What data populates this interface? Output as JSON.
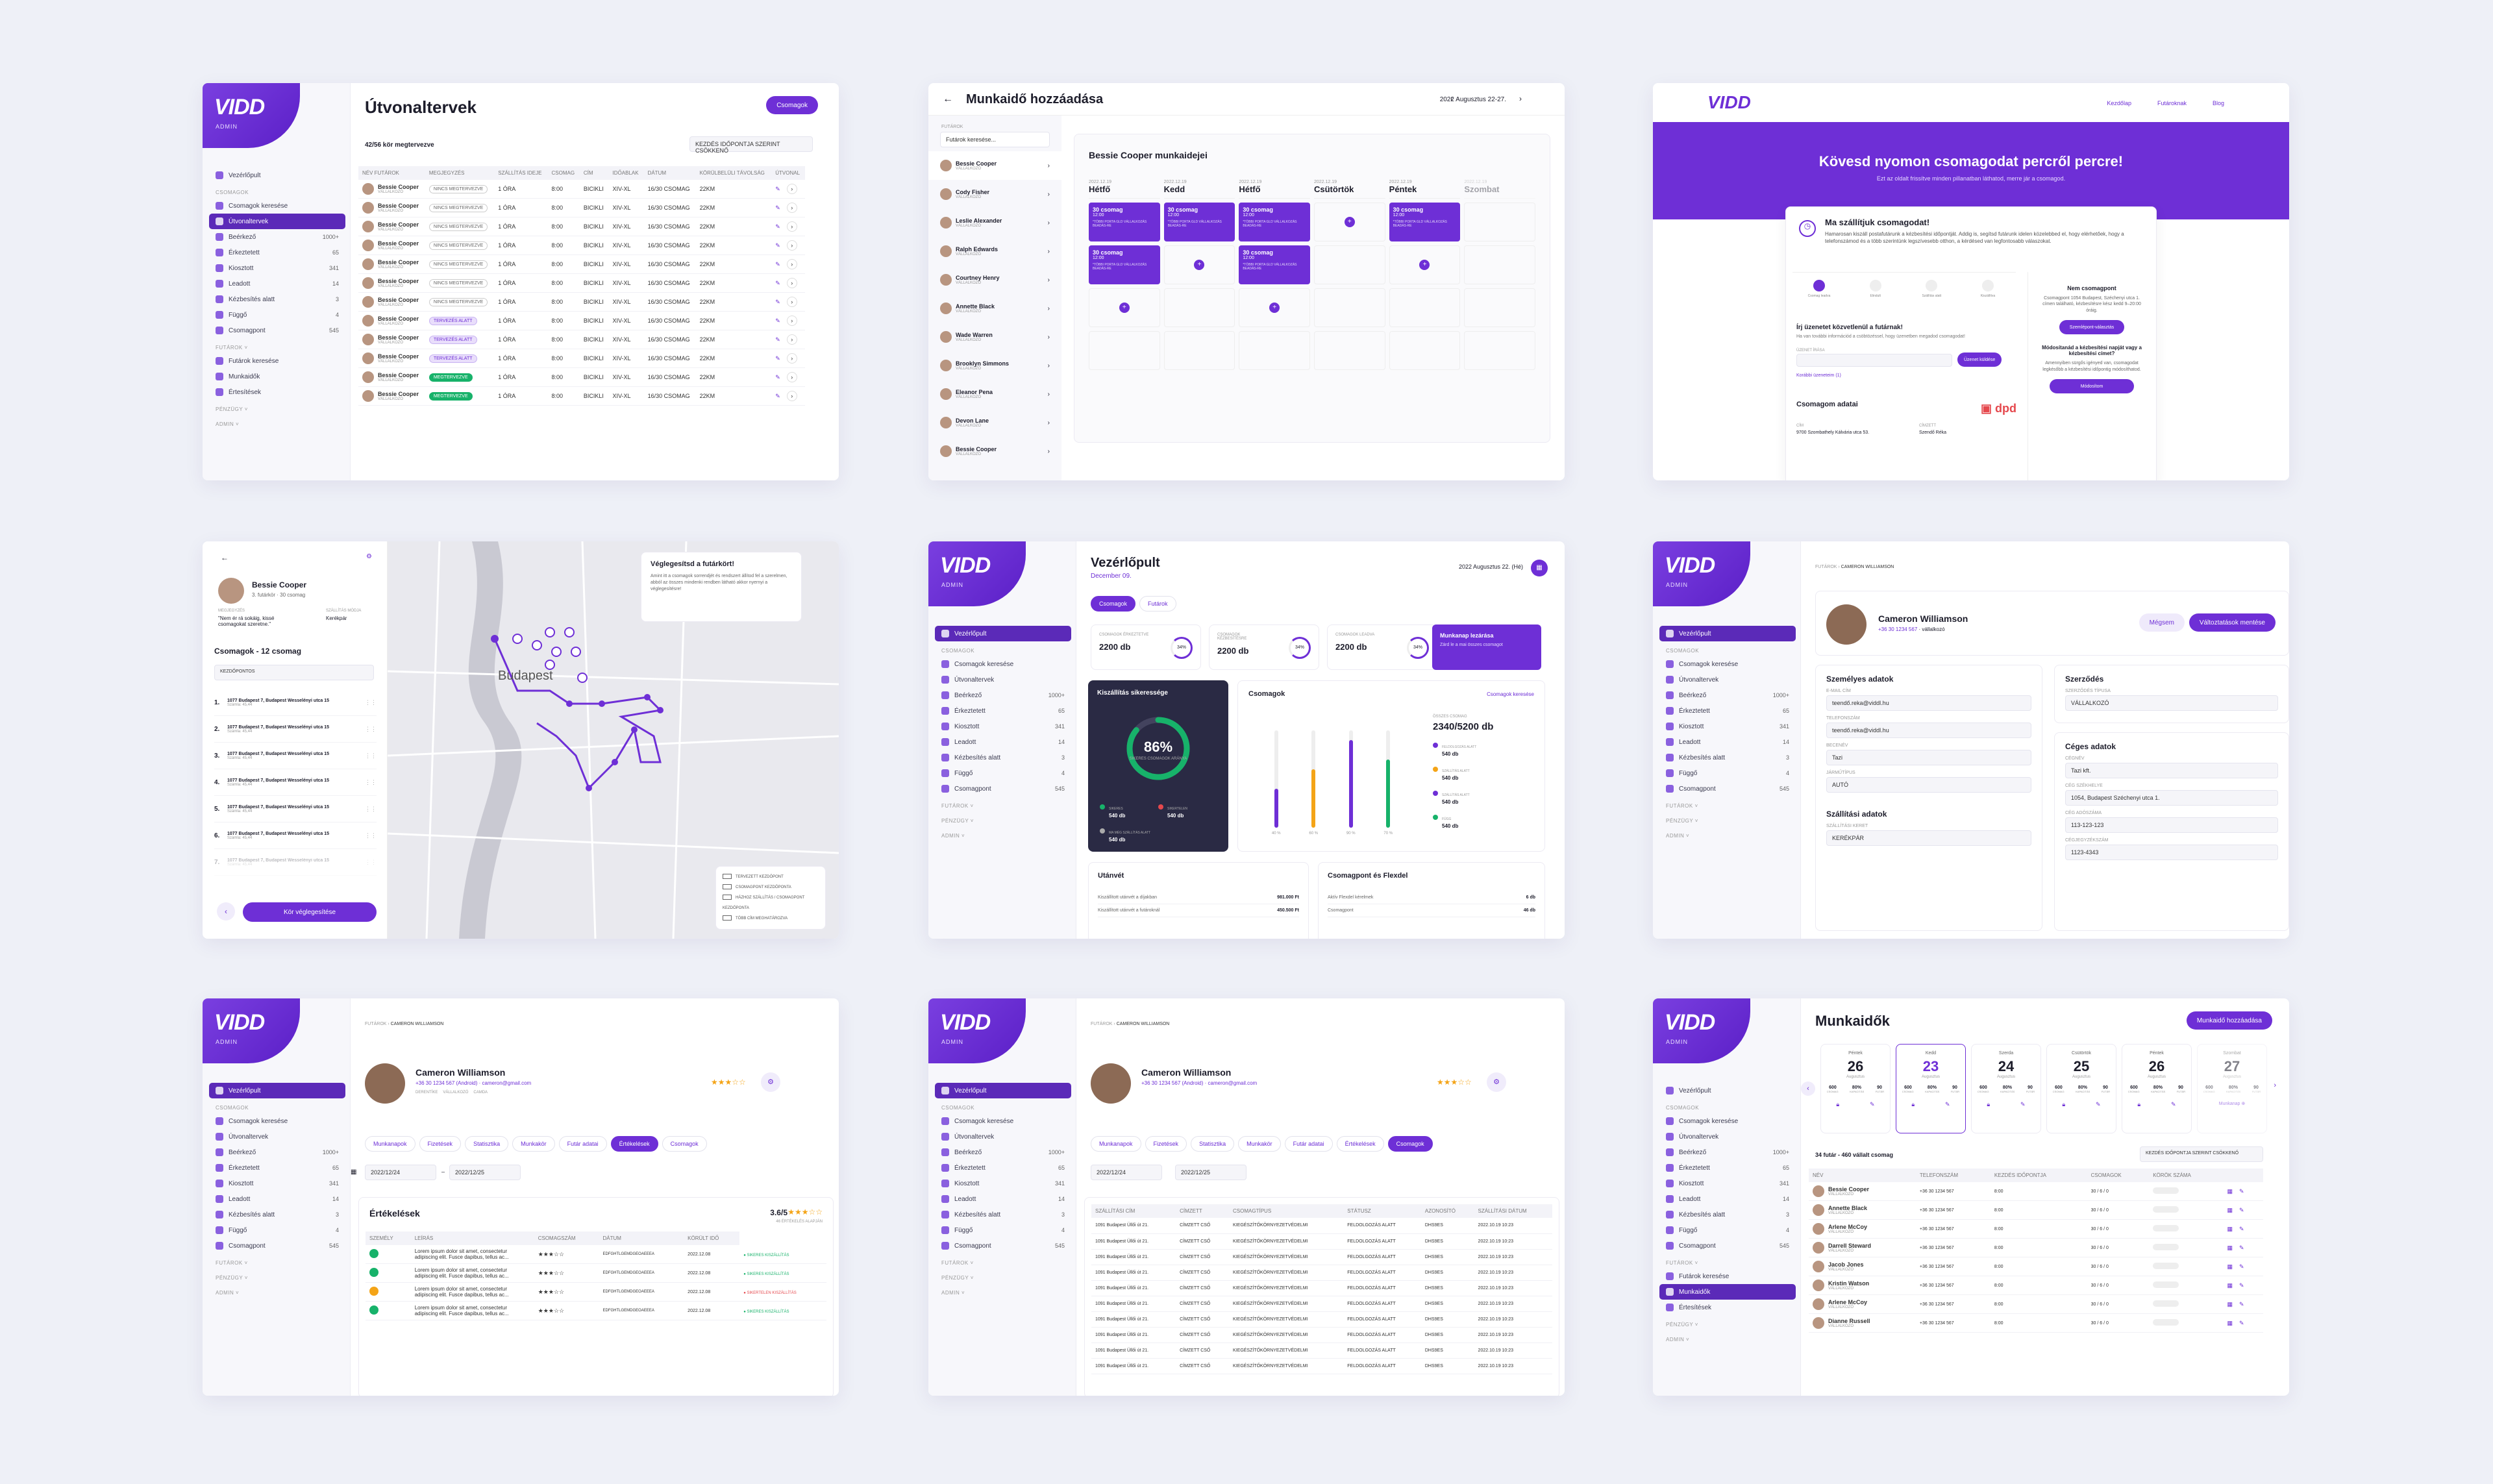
{
  "brand": {
    "logo": "VIDD",
    "sub": "ADMIN"
  },
  "nav": {
    "dashboard": "Vezérlőpult",
    "packages_group": "CSOMAGOK",
    "items": [
      {
        "label": "Csomagok keresése",
        "count": ""
      },
      {
        "label": "Útvonaltervek",
        "count": ""
      },
      {
        "label": "Beérkező",
        "count": "1000+"
      },
      {
        "label": "Érkeztetett",
        "count": "65"
      },
      {
        "label": "Kiosztott",
        "count": "341"
      },
      {
        "label": "Leadott",
        "count": "14"
      },
      {
        "label": "Kézbesítés alatt",
        "count": "3"
      },
      {
        "label": "Függő",
        "count": "4"
      },
      {
        "label": "Csomagpont",
        "count": "545"
      }
    ],
    "g2": "FUTÁROK",
    "g2items": [
      "Futárok keresése",
      "Munkaidők",
      "Értesítések"
    ],
    "g3": "PÉNZÜGY",
    "g4": "ADMIN"
  },
  "s1": {
    "title": "Útvonaltervek",
    "btn": "Csomagok",
    "count": "42/56 kör megtervezve",
    "filter": "KEZDÉS IDŐPONTJA SZERINT CSÖKKENŐ",
    "cols": [
      "NÉV FUTÁROK",
      "MEGJEGYZÉS",
      "SZÁLLÍTÁS IDEJE",
      "CSOMAG",
      "CÍM",
      "IDŐABLAK",
      "DÁTUM",
      "KÖRÜLBELÜLI TÁVOLSÁG",
      "ÚTVONAL"
    ],
    "rows": [
      {
        "name": "Bessie Cooper",
        "role": "VÁLLALKOZÓ",
        "status": "NINCS MEGTERVEZVE",
        "st": "n",
        "a": "1 ÓRA",
        "b": "8:00",
        "c": "BICIKLI",
        "d": "XIV-XL",
        "e": "16/30 CSOMAG",
        "f": "22KM"
      },
      {
        "name": "Bessie Cooper",
        "role": "VÁLLALKOZÓ",
        "status": "NINCS MEGTERVEZVE",
        "st": "n",
        "a": "1 ÓRA",
        "b": "8:00",
        "c": "BICIKLI",
        "d": "XIV-XL",
        "e": "16/30 CSOMAG",
        "f": "22KM"
      },
      {
        "name": "Bessie Cooper",
        "role": "VÁLLALKOZÓ",
        "status": "NINCS MEGTERVEZVE",
        "st": "n",
        "a": "1 ÓRA",
        "b": "8:00",
        "c": "BICIKLI",
        "d": "XIV-XL",
        "e": "16/30 CSOMAG",
        "f": "22KM"
      },
      {
        "name": "Bessie Cooper",
        "role": "VÁLLALKOZÓ",
        "status": "NINCS MEGTERVEZVE",
        "st": "n",
        "a": "1 ÓRA",
        "b": "8:00",
        "c": "BICIKLI",
        "d": "XIV-XL",
        "e": "16/30 CSOMAG",
        "f": "22KM"
      },
      {
        "name": "Bessie Cooper",
        "role": "VÁLLALKOZÓ",
        "status": "NINCS MEGTERVEZVE",
        "st": "n",
        "a": "1 ÓRA",
        "b": "8:00",
        "c": "BICIKLI",
        "d": "XIV-XL",
        "e": "16/30 CSOMAG",
        "f": "22KM"
      },
      {
        "name": "Bessie Cooper",
        "role": "VÁLLALKOZÓ",
        "status": "NINCS MEGTERVEZVE",
        "st": "n",
        "a": "1 ÓRA",
        "b": "8:00",
        "c": "BICIKLI",
        "d": "XIV-XL",
        "e": "16/30 CSOMAG",
        "f": "22KM"
      },
      {
        "name": "Bessie Cooper",
        "role": "VÁLLALKOZÓ",
        "status": "NINCS MEGTERVEZVE",
        "st": "n",
        "a": "1 ÓRA",
        "b": "8:00",
        "c": "BICIKLI",
        "d": "XIV-XL",
        "e": "16/30 CSOMAG",
        "f": "22KM"
      },
      {
        "name": "Bessie Cooper",
        "role": "VÁLLALKOZÓ",
        "status": "TERVEZÉS ALATT",
        "st": "p",
        "a": "1 ÓRA",
        "b": "8:00",
        "c": "BICIKLI",
        "d": "XIV-XL",
        "e": "16/30 CSOMAG",
        "f": "22KM"
      },
      {
        "name": "Bessie Cooper",
        "role": "VÁLLALKOZÓ",
        "status": "TERVEZÉS ALATT",
        "st": "p",
        "a": "1 ÓRA",
        "b": "8:00",
        "c": "BICIKLI",
        "d": "XIV-XL",
        "e": "16/30 CSOMAG",
        "f": "22KM"
      },
      {
        "name": "Bessie Cooper",
        "role": "VÁLLALKOZÓ",
        "status": "TERVEZÉS ALATT",
        "st": "p",
        "a": "1 ÓRA",
        "b": "8:00",
        "c": "BICIKLI",
        "d": "XIV-XL",
        "e": "16/30 CSOMAG",
        "f": "22KM"
      },
      {
        "name": "Bessie Cooper",
        "role": "VÁLLALKOZÓ",
        "status": "MEGTERVEZVE",
        "st": "g",
        "a": "1 ÓRA",
        "b": "8:00",
        "c": "BICIKLI",
        "d": "XIV-XL",
        "e": "16/30 CSOMAG",
        "f": "22KM"
      },
      {
        "name": "Bessie Cooper",
        "role": "VÁLLALKOZÓ",
        "status": "MEGTERVEZVE",
        "st": "g",
        "a": "1 ÓRA",
        "b": "8:00",
        "c": "BICIKLI",
        "d": "XIV-XL",
        "e": "16/30 CSOMAG",
        "f": "22KM"
      }
    ]
  },
  "s2": {
    "title": "Munkaidő hozzáadása",
    "date": "2022 Augusztus 22-27.",
    "side_label": "FUTÁROK",
    "search": "Futárok keresése...",
    "heading": "Bessie Cooper munkaidejei",
    "couriers": [
      {
        "n": "Bessie Cooper",
        "r": "VÁLLALKOZÓ"
      },
      {
        "n": "Cody Fisher",
        "r": "VÁLLALKOZÓ"
      },
      {
        "n": "Leslie Alexander",
        "r": "VÁLLALKOZÓ"
      },
      {
        "n": "Ralph Edwards",
        "r": "VÁLLALKOZÓ"
      },
      {
        "n": "Courtney Henry",
        "r": "VÁLLALKOZÓ"
      },
      {
        "n": "Annette Black",
        "r": "VÁLLALKOZÓ"
      },
      {
        "n": "Wade Warren",
        "r": "VÁLLALKOZÓ"
      },
      {
        "n": "Brooklyn Simmons",
        "r": "VÁLLALKOZÓ"
      },
      {
        "n": "Eleanor Pena",
        "r": "VÁLLALKOZÓ"
      },
      {
        "n": "Devon Lane",
        "r": "VÁLLALKOZÓ"
      },
      {
        "n": "Bessie Cooper",
        "r": "VÁLLALKOZÓ"
      }
    ],
    "days": [
      {
        "d": "2022.12.19",
        "n": "Hétfő"
      },
      {
        "d": "2022.12.19",
        "n": "Kedd"
      },
      {
        "d": "2022.12.19",
        "n": "Hétfő"
      },
      {
        "d": "2022.12.19",
        "n": "Csütörtök"
      },
      {
        "d": "2022.12.19",
        "n": "Péntek"
      },
      {
        "d": "2022.12.19",
        "n": "Szombat"
      }
    ],
    "slot": "30 csomag",
    "slot_t": "12:00",
    "slot_note": "*TÖBBI PORTA GLD VÁLLALKOZÁS BEADÁS-RE"
  },
  "s3": {
    "nav": [
      "Kezdőlap",
      "Futároknak",
      "Blog"
    ],
    "hero": "Kövesd nyomon csomagodat percről percre!",
    "hero_sub": "Ezt az oldalt frissítve minden pillanatban láthatod, merre jár a csomagod.",
    "card_title": "Ma szállítjuk csomagodat!",
    "card_text": "Hamarosan kiszáll postafutárunk a kézbesítési időpontját. Addig is, segítsd futárunk idelen közelebbed el, hogy elérhetőek, hogy a telefonszámod és a több szerintünk legszívesebb otthon, a kérdésed van legfontosabb válaszokat.",
    "steps": [
      "Csomag leadva",
      "Elindult",
      "Szállítás alatt",
      "Kiszállítva"
    ],
    "msg_title": "Írj üzenetet közvetlenül a futárnak!",
    "msg_text": "Ha van további információd a csöbtözéssel, hogy üzenetben megadod csomagodat!",
    "msg_label": "ÜZENET ÍRÁSA",
    "msg_btn": "Üzenet küldése",
    "msg_link": "Korábbi üzeneteim (1)",
    "data_title": "Csomagom adatai",
    "addr_l": "CÍM",
    "addr": "9700 Szombathely Kálvária utca 53.",
    "rec_l": "CÍMZETT",
    "rec": "Szendő Réka",
    "side1": "Nem csomagpont",
    "side1_t": "Csomagpont 1054 Budapest, Széchenyi utca 1. címen található, kézbesítésre kész kedd 9–20:00 óráig.",
    "side1_btn": "Szemlépont-választás",
    "side2": "Módosítanád a kézbesítési napját vagy a kézbesítési címet?",
    "side2_t": "Amennyiben sürgős igényed van, csomagodat legkésőbb a kézbesítési időpontig módosíthatod.",
    "side2_btn": "Módosítom"
  },
  "s4": {
    "name": "Bessie Cooper",
    "meta": "3. futárkör · 30 csomag",
    "note_l": "MEGJEGYZÉS",
    "note": "\"Nem ér rá sokáig, kissé csomagokat szeretne.\"",
    "veh_l": "SZÁLLÍTÁS MÓDJA",
    "veh": "Kerékpár",
    "list_title": "Csomagok - 12 csomag",
    "sort": "KEZDŐPONTOS",
    "items": [
      "1077 Budapest 7, Budapest Wesselényi utca 15",
      "1077 Budapest 7, Budapest Wesselényi utca 15",
      "1077 Budapest 7, Budapest Wesselényi utca 15",
      "1077 Budapest 7, Budapest Wesselényi utca 15",
      "1077 Budapest 7, Budapest Wesselényi utca 15",
      "1077 Budapest 7, Budapest Wesselényi utca 15",
      "1077 Budapest 7, Budapest Wesselényi utca 15"
    ],
    "item_sub": "Számla: 45,44",
    "finish": "Kör véglegesítése",
    "popup_t": "Véglegesítsd a futárkört!",
    "popup": "Amint itt a csomagok sorrendjét és rendszert állítod fel a szerelmen, abból az összes mindenki rendben látható akkor nyernyi a véglegesítésre!",
    "city": "Budapest",
    "legend": [
      "TERVEZETT KEZDŐPONT",
      "CSOMAGPONT KEZDŐPONTA",
      "HÁZHOZ SZÁLLÍTÁS / CSOMAGPONT KEZDŐPONTA",
      "TÖBB CÍM MEGHATÁROZVA"
    ]
  },
  "s5": {
    "title": "Vezérlőpult",
    "sub": "December 09.",
    "tabs": [
      "Csomagok",
      "Futárok"
    ],
    "date": "2022 Augusztus 22. (Hé)",
    "stats": [
      {
        "l": "CSOMAGOK ÉRKEZTETVE",
        "v": "2200 db",
        "p": "34%"
      },
      {
        "l": "CSOMAGOK KÉZBESÍTÉSRE",
        "v": "2200 db",
        "p": "34%"
      },
      {
        "l": "CSOMAGOK LEADVA",
        "v": "2200 db",
        "p": "34%"
      }
    ],
    "cta": "Munkanap lezárása",
    "cta_t": "Zárd le a mai összes csomagot",
    "success_t": "Kiszállítás sikeressége",
    "success_p": "86%",
    "success_s": "SIKERES CSOMAGOK ARÁNYA",
    "legend": [
      {
        "l": "SIKERES",
        "v": "540 db"
      },
      {
        "l": "SIKERTELEN",
        "v": "540 db"
      },
      {
        "l": "MA MÉG SZÁLLÍTÁS ALATT",
        "v": "540 db"
      }
    ],
    "pk_title": "Csomagok",
    "pk_link": "Csomagok keresése",
    "total_l": "ÖSSZES CSOMAG",
    "total": "2340/5200 db",
    "pk": [
      {
        "l": "FELDOLGOZÁS ALATT",
        "v": "540 db"
      },
      {
        "l": "SZÁLLÍTÁS ALATT",
        "v": "540 db"
      },
      {
        "l": "SZÁLLÍTÁS ALATT",
        "v": "540 db"
      },
      {
        "l": "FÜGG",
        "v": "540 db"
      }
    ],
    "bars": [
      "40 %",
      "60 %",
      "90 %",
      "70 %"
    ],
    "pay_t": "Utánvét",
    "pay": [
      {
        "l": "Kiszállított utánvét a díjakban",
        "v": "981.000 Ft"
      },
      {
        "l": "Kiszállított utánvét a futároknál",
        "v": "450.500 Ft"
      }
    ],
    "cp_t": "Csomagpont és Flexdel",
    "cp": [
      {
        "l": "Aktív Flexdel kérelmek",
        "v": "6 db"
      },
      {
        "l": "Csomagpont",
        "v": "46 db"
      }
    ]
  },
  "s6": {
    "crumb1": "FUTÁROK",
    "crumb2": "CAMERON WILLIAMSON",
    "name": "Cameron Williamson",
    "phone": "+36 30 1234 567",
    "role": "vállalkozó",
    "btn1": "Mégsem",
    "btn2": "Változtatások mentése",
    "personal": "Személyes adatok",
    "email_l": "E-MAIL CÍM",
    "email": "teendő.reka@viddl.hu",
    "phone_l": "TELEFONSZÁM",
    "phone2": "teendő.reka@viddl.hu",
    "name_l": "BECENÉV",
    "nick": "Tazi",
    "veh_l": "JÁRMŰTÍPUS",
    "veh": "AUTÓ",
    "contract": "Szerződés",
    "contract_l": "SZERZŐDÉS TÍPUSA",
    "contract_v": "VÁLLALKOZÓ",
    "company": "Céges adatok",
    "cname_l": "CÉGNÉV",
    "cname": "Tazi kft.",
    "cseat_l": "CÉG SZÉKHELYE",
    "cseat": "1054, Budapest Széchenyi utca 1.",
    "tax_l": "CÉG ADÓSZÁMA",
    "tax": "113-123-123",
    "reg_l": "CÉGJEGYZÉKSZÁM",
    "reg": "1123-4343",
    "ship": "Szállítási adatok",
    "ship_l": "SZÁLLÍTÁSI KERET",
    "ship_v": "KERÉKPÁR"
  },
  "s7": {
    "name": "Cameron Williamson",
    "phone": "+36 30 1234 567 (Android)",
    "email": "cameron@gmail.com",
    "tags": [
      "DERENTÍKE",
      "VÁLLALKOZÓ",
      "CAMDA"
    ],
    "tabs": [
      "Munkanapok",
      "Fizetések",
      "Statisztika",
      "Munkakör",
      "Futár adatai",
      "Értékelések",
      "Csomagok"
    ],
    "from": "2022/12/24",
    "to": "2022/12/25",
    "rev_t": "Értékelések",
    "rating": "3.6/5",
    "rating_s": "46 ÉRTÉKELÉS ALAPJÁN",
    "cols": [
      "SZEMÉLY",
      "LEÍRÁS",
      "CSOMAGSZÁM",
      "DÁTUM",
      "KÖRÜLT IDŐ"
    ],
    "revs": [
      {
        "t": "Lorem ipsum dolor sit amet, consectetur adipiscing elit. Fusce dapibus, tellus ac...",
        "id": "EDFGHTLGEMDGEOAEEEA",
        "d": "2022.12.08",
        "s": "SIKERES KISZÁLLÍTÁS",
        "ok": true
      },
      {
        "t": "Lorem ipsum dolor sit amet, consectetur adipiscing elit. Fusce dapibus, tellus ac...",
        "id": "EDFGHTLGEMDGEOAEEEA",
        "d": "2022.12.08",
        "s": "SIKERES KISZÁLLÍTÁS",
        "ok": true
      },
      {
        "t": "Lorem ipsum dolor sit amet, consectetur adipiscing elit. Fusce dapibus, tellus ac...",
        "id": "EDFGHTLGEMDGEOAEEEA",
        "d": "2022.12.08",
        "s": "SIKERTELEN KISZÁLLÍTÁS",
        "ok": false
      },
      {
        "t": "Lorem ipsum dolor sit amet, consectetur adipiscing elit. Fusce dapibus, tellus ac...",
        "id": "EDFGHTLGEMDGEOAEEEA",
        "d": "2022.12.08",
        "s": "SIKERES KISZÁLLÍTÁS",
        "ok": true
      }
    ]
  },
  "s8": {
    "cols": [
      "SZÁLLÍTÁSI CÍM",
      "CÍMZETT",
      "CSOMAGTÍPUS",
      "STÁTUSZ",
      "AZONOSÍTÓ",
      "SZÁLLÍTÁSI DÁTUM"
    ],
    "row": {
      "a": "1091 Budapest Üllői út 21.",
      "b": "CÍMZETT CSŐ",
      "c": "KIEGÉSZÍTŐKÖRNYEZETVÉDELMI",
      "d": "FELDOLGOZÁS ALATT",
      "e": "DHS9ES",
      "f": "2022.10.19 10:23"
    },
    "rows": 10
  },
  "s9": {
    "title": "Munkaidők",
    "btn": "Munkaidő hozzáadása",
    "days": [
      {
        "n": "Péntek",
        "d": "26",
        "m": "Augusztus"
      },
      {
        "n": "Kedd",
        "d": "23",
        "m": "Augusztus"
      },
      {
        "n": "Szerda",
        "d": "24",
        "m": "Augusztus"
      },
      {
        "n": "Csütörtök",
        "d": "25",
        "m": "Augusztus"
      },
      {
        "n": "Péntek",
        "d": "26",
        "m": "Augusztus"
      },
      {
        "n": "Szombat",
        "d": "27",
        "m": "Augusztus"
      }
    ],
    "stat_a": "600",
    "stat_b": "80%",
    "stat_c": "90",
    "stat_la": "CSOMAG",
    "stat_lb": "KAPACITÁS",
    "stat_lc": "FUTÁR",
    "holiday": "Munkanap",
    "sub": "34 futár - 460 vállalt csomag",
    "filter": "KEZDÉS IDŐPONTJA SZERINT CSÖKKENŐ",
    "cols": [
      "NÉV",
      "TELEFONSZÁM",
      "KEZDÉS IDŐPONTJA",
      "CSOMAGOK",
      "KÖRÖK SZÁMA"
    ],
    "people": [
      {
        "n": "Bessie Cooper",
        "r": "VÁLLALKOZÓ"
      },
      {
        "n": "Annette Black",
        "r": "VÁLLALKOZÓ"
      },
      {
        "n": "Arlene McCoy",
        "r": "VÁLLALKOZÓ"
      },
      {
        "n": "Darrell Steward",
        "r": "VÁLLALKOZÓ"
      },
      {
        "n": "Jacob Jones",
        "r": "VÁLLALKOZÓ"
      },
      {
        "n": "Kristin Watson",
        "r": "VÁLLALKOZÓ"
      },
      {
        "n": "Arlene McCoy",
        "r": "VÁLLALKOZÓ"
      },
      {
        "n": "Dianne Russell",
        "r": "VÁLLALKOZÓ"
      }
    ],
    "phone": "+36 30 1234 567",
    "start": "8:00",
    "pk": "30 / 6 / 0"
  },
  "colors": {
    "accent": "#6e2fd6",
    "dark": "#2a2a44",
    "success": "#17b26a",
    "warn": "#f4a417",
    "danger": "#e5484d"
  }
}
